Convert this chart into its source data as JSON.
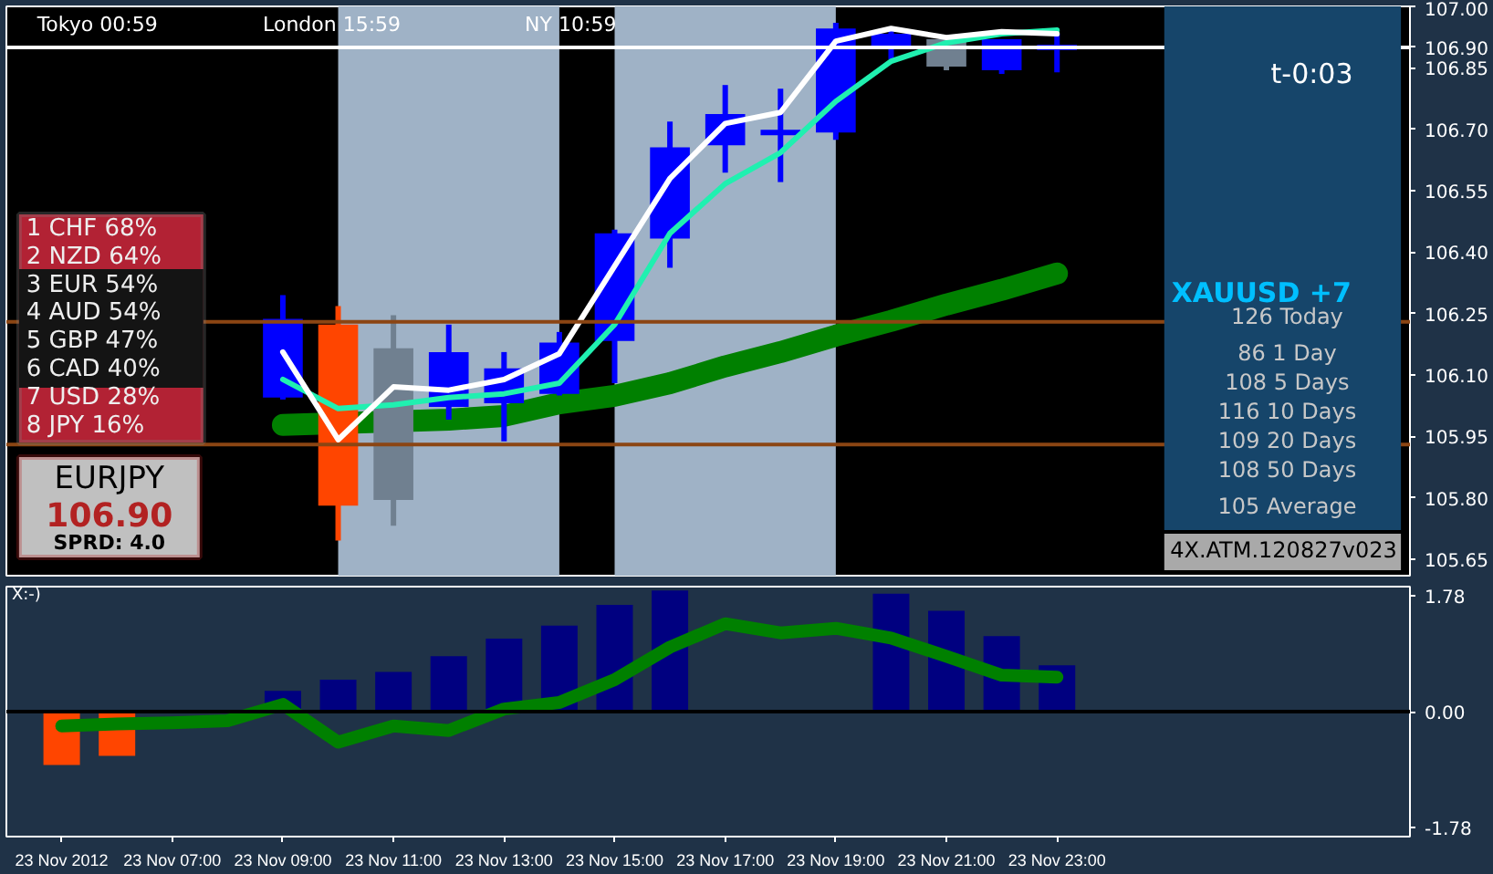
{
  "chart_data": [
    {
      "type": "candlestick",
      "x": [
        "2012-11-23T09:00",
        "2012-11-23T10:00",
        "2012-11-23T11:00",
        "2012-11-23T12:00",
        "2012-11-23T13:00",
        "2012-11-23T14:00",
        "2012-11-23T15:00",
        "2012-11-23T16:00",
        "2012-11-23T17:00",
        "2012-11-23T18:00",
        "2012-11-23T19:00",
        "2012-11-23T20:00",
        "2012-11-23T21:00",
        "2012-11-23T22:00",
        "2012-11-23T23:00"
      ],
      "ohlc": [
        [
          106.045,
          106.295,
          106.04,
          106.237
        ],
        [
          106.223,
          106.268,
          105.696,
          105.781
        ],
        [
          106.165,
          106.246,
          105.732,
          105.795
        ],
        [
          106.022,
          106.223,
          105.991,
          106.156
        ],
        [
          106.031,
          106.156,
          105.938,
          106.116
        ],
        [
          106.054,
          106.205,
          106.05,
          106.179
        ],
        [
          106.183,
          106.455,
          106.08,
          106.446
        ],
        [
          106.433,
          106.719,
          106.362,
          106.656
        ],
        [
          106.661,
          106.808,
          106.594,
          106.737
        ],
        [
          106.692,
          106.799,
          106.571,
          106.692
        ],
        [
          106.692,
          106.96,
          106.674,
          106.946
        ],
        [
          106.902,
          106.946,
          106.871,
          106.933
        ],
        [
          106.92,
          106.92,
          106.844,
          106.853
        ],
        [
          106.844,
          106.92,
          106.835,
          106.92
        ],
        [
          106.9,
          106.933,
          106.839,
          106.9
        ]
      ],
      "colors": [
        "#0000ff",
        "#ff4500",
        "#708090",
        "#0000ff",
        "#0000ff",
        "#0000ff",
        "#0000ff",
        "#0000ff",
        "#0000ff",
        "#0000ff",
        "#0000ff",
        "#0000ff",
        "#708090",
        "#0000ff",
        "#0000ff"
      ],
      "series": [
        {
          "type": "line",
          "color": "#008000",
          "values": [
            105.978,
            null,
            null,
            105.991,
            106.0,
            106.031,
            106.049,
            106.08,
            106.121,
            106.156,
            106.196,
            106.232,
            106.272,
            106.308,
            106.348
          ]
        },
        {
          "type": "line",
          "color": "#20f0b0",
          "values": [
            106.089,
            106.018,
            106.027,
            106.045,
            106.054,
            106.08,
            106.223,
            106.446,
            106.567,
            106.643,
            106.768,
            106.866,
            106.911,
            106.933,
            106.942
          ]
        },
        {
          "type": "line",
          "color": "#ffffff",
          "values": [
            106.156,
            105.942,
            106.071,
            106.063,
            106.089,
            106.152,
            106.366,
            106.58,
            106.714,
            106.741,
            106.915,
            106.946,
            106.924,
            106.938,
            106.933
          ]
        }
      ],
      "xlim": [
        "2012-11-23T04:00",
        "2012-11-24T05:23"
      ],
      "ylim": [
        105.61,
        107.0
      ],
      "yticks": [
        {
          "value": 105.65,
          "label": "105.65"
        },
        {
          "value": 105.8,
          "label": "105.80"
        },
        {
          "value": 105.95,
          "label": "105.95"
        },
        {
          "value": 106.1,
          "label": "106.10"
        },
        {
          "value": 106.25,
          "label": "106.25"
        },
        {
          "value": 106.4,
          "label": "106.40"
        },
        {
          "value": 106.55,
          "label": "106.55"
        },
        {
          "value": 106.7,
          "label": "106.70"
        },
        {
          "value": 106.85,
          "label": "106.85"
        },
        {
          "value": 106.9,
          "label": "106.90"
        },
        {
          "value": 107.0,
          "label": "107.00"
        }
      ],
      "tick_labels": "y",
      "ref_lines": [
        {
          "axis": "y",
          "value": 106.23,
          "color": "#8b4513"
        },
        {
          "axis": "y",
          "value": 105.93,
          "color": "#8b4513"
        },
        {
          "axis": "y",
          "value": 106.9,
          "color": "#ffffff"
        }
      ],
      "bands": [
        {
          "axis": "x",
          "from": "2012-11-23T10:00",
          "to": "2012-11-23T14:00",
          "color": "#9fb2c6"
        },
        {
          "axis": "x",
          "from": "2012-11-23T15:00",
          "to": "2012-11-23T19:00",
          "color": "#9fb2c6"
        }
      ],
      "annotations": [
        "Tokyo 00:59",
        "London 15:59",
        "NY 10:59",
        "t-0:03",
        "1 CHF 68%",
        "2 NZD 64%",
        "3 EUR 54%",
        "4 AUD 54%",
        "5 GBP 47%",
        "6 CAD 40%",
        "7 USD 28%",
        "8 JPY 16%",
        "EURJPY",
        "106.90",
        "SPRD: 4.0",
        "XAUUSD +7",
        "126 Today",
        "86 1 Day",
        "108 5 Days",
        "116 10 Days",
        "109 20 Days",
        "108 50 Days",
        "105 Average",
        "4X.ATM.120827v023"
      ]
    },
    {
      "type": "bar",
      "x": [
        "2012-11-23T05:00",
        "2012-11-23T06:00",
        "2012-11-23T07:00",
        "2012-11-23T09:00",
        "2012-11-23T10:00",
        "2012-11-23T11:00",
        "2012-11-23T12:00",
        "2012-11-23T13:00",
        "2012-11-23T14:00",
        "2012-11-23T15:00",
        "2012-11-23T16:00",
        "2012-11-23T17:00",
        "2012-11-23T18:00",
        "2012-11-23T19:00",
        "2012-11-23T20:00",
        "2012-11-23T21:00",
        "2012-11-23T22:00",
        "2012-11-23T23:00"
      ],
      "values": [
        -0.82,
        -0.68,
        null,
        0.32,
        0.49,
        0.61,
        0.85,
        1.12,
        1.32,
        1.64,
        1.86,
        null,
        null,
        null,
        1.81,
        1.55,
        1.16,
        0.71
      ],
      "colors": [
        "#ff4500",
        "#ff4500",
        "#ff4500",
        "#000080",
        "#000080",
        "#000080",
        "#000080",
        "#000080",
        "#000080",
        "#000080",
        "#000080",
        "#000080",
        "#000080",
        "#000080",
        "#000080",
        "#000080",
        "#000080",
        "#000080"
      ],
      "series": [
        {
          "type": "line",
          "color": "#008000",
          "x": [
            "2012-11-23T05:00",
            "2012-11-23T06:00",
            "2012-11-23T07:00",
            "2012-11-23T08:00",
            "2012-11-23T09:00",
            "2012-11-23T10:00",
            "2012-11-23T11:00",
            "2012-11-23T12:00",
            "2012-11-23T13:00",
            "2012-11-23T14:00",
            "2012-11-23T15:00",
            "2012-11-23T16:00",
            "2012-11-23T17:00",
            "2012-11-23T18:00",
            "2012-11-23T19:00",
            "2012-11-23T20:00",
            "2012-11-23T21:00",
            "2012-11-23T22:00",
            "2012-11-23T23:00"
          ],
          "values": [
            -0.22,
            -0.19,
            -0.17,
            -0.14,
            0.11,
            -0.47,
            -0.22,
            -0.29,
            0.04,
            0.14,
            0.49,
            0.99,
            1.35,
            1.21,
            1.28,
            1.13,
            0.85,
            0.56,
            0.53
          ]
        }
      ],
      "xlim": [
        "2012-11-23T04:00",
        "2012-11-24T05:23"
      ],
      "ylim": [
        -1.92,
        1.92
      ],
      "xticks": [
        {
          "value": "2012-11-23T05:00",
          "label": "23 Nov 2012"
        },
        {
          "value": "2012-11-23T07:00",
          "label": "23 Nov 07:00"
        },
        {
          "value": "2012-11-23T09:00",
          "label": "23 Nov 09:00"
        },
        {
          "value": "2012-11-23T11:00",
          "label": "23 Nov 11:00"
        },
        {
          "value": "2012-11-23T13:00",
          "label": "23 Nov 13:00"
        },
        {
          "value": "2012-11-23T15:00",
          "label": "23 Nov 15:00"
        },
        {
          "value": "2012-11-23T17:00",
          "label": "23 Nov 17:00"
        },
        {
          "value": "2012-11-23T19:00",
          "label": "23 Nov 19:00"
        },
        {
          "value": "2012-11-23T21:00",
          "label": "23 Nov 21:00"
        },
        {
          "value": "2012-11-23T23:00",
          "label": "23 Nov 23:00"
        }
      ],
      "yticks": [
        {
          "value": -1.78,
          "label": "-1.78"
        },
        {
          "value": 0,
          "label": "0.00"
        },
        {
          "value": 1.78,
          "label": "1.78"
        }
      ],
      "ref_lines": [
        {
          "axis": "y",
          "value": 0,
          "color": "#000000"
        }
      ],
      "annotations": [
        "X:-)"
      ]
    }
  ]
}
